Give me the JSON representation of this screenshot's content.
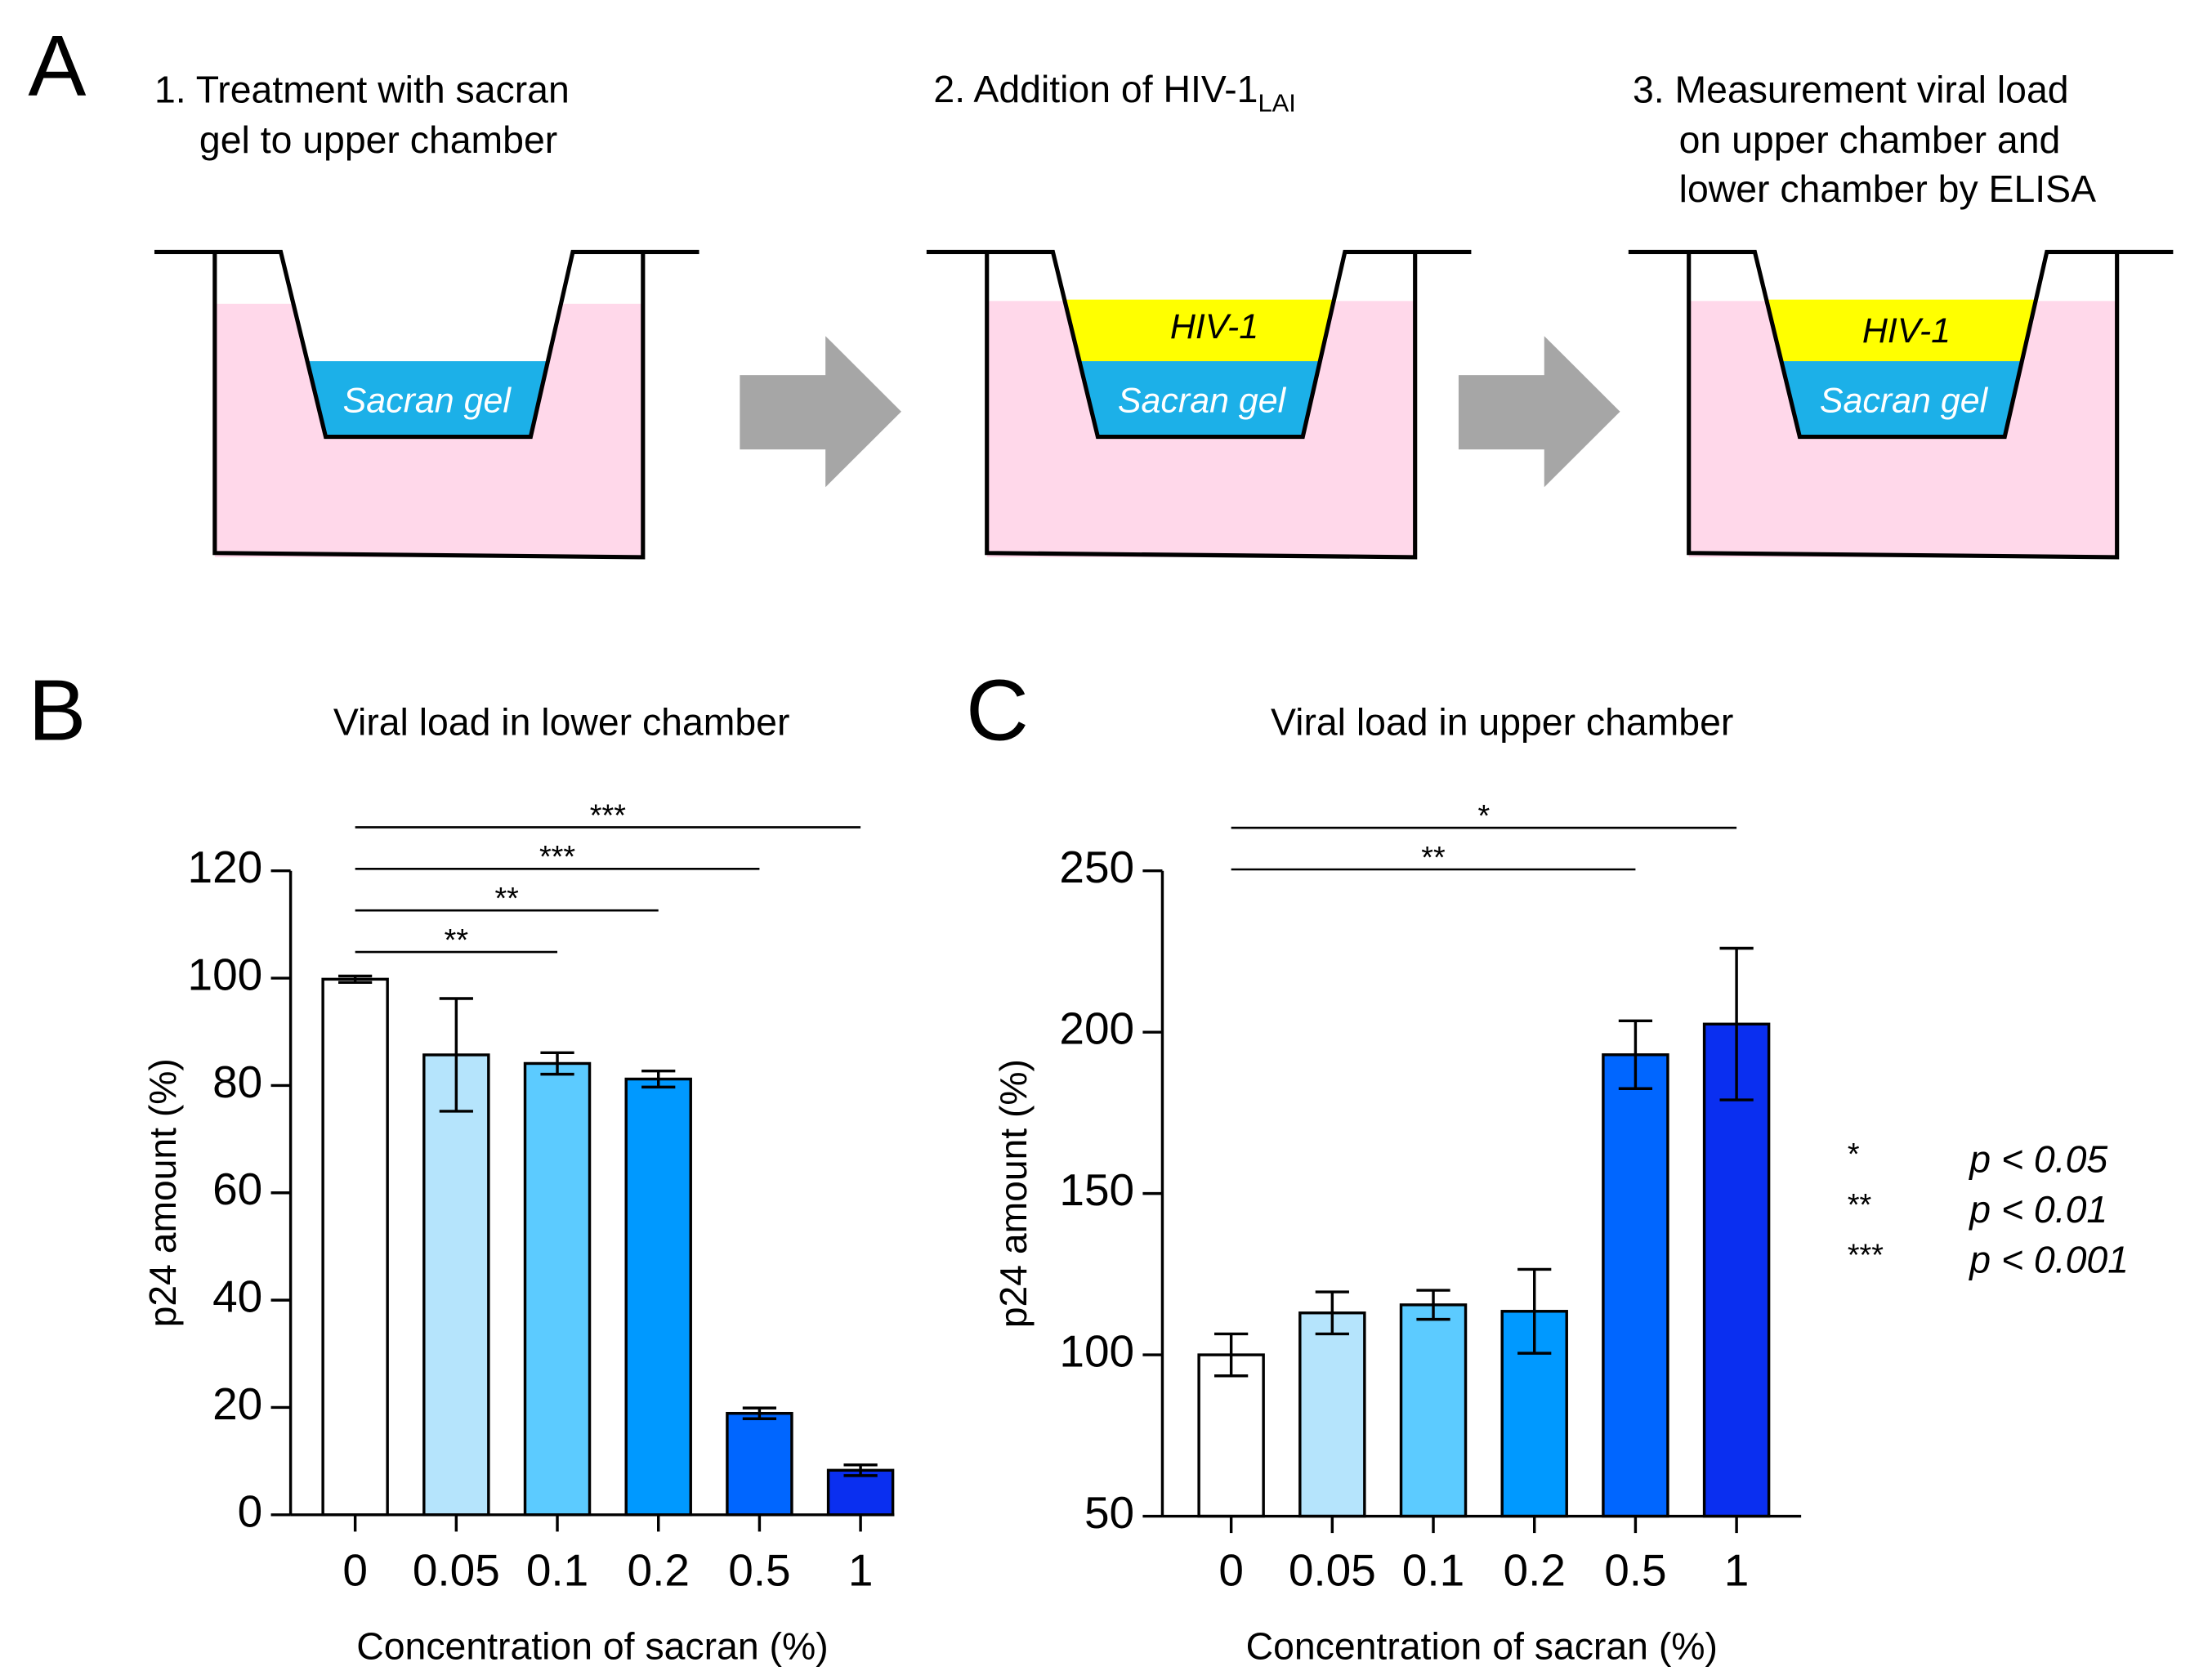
{
  "panel_a": {
    "label": "A",
    "steps": [
      {
        "lines": [
          "1. Treatment with sacran",
          "gel to upper chamber"
        ]
      },
      {
        "lines": [
          "2. Addition of HIV-1"
        ],
        "subscript": "LAI"
      },
      {
        "lines": [
          "3. Measurement viral load",
          "on upper chamber and",
          "lower chamber by ELISA"
        ]
      }
    ],
    "gel_label": "Sacran gel",
    "virus_label": "HIV-1"
  },
  "chart_data": [
    {
      "type": "bar",
      "label": "B",
      "title": "Viral load in lower chamber",
      "x_label": "Concentration of sacran (%)",
      "y_label": "p24 amount (%)",
      "categories": [
        "0",
        "0.05",
        "0.1",
        "0.2",
        "0.5",
        "1"
      ],
      "values": [
        99.8,
        85.7,
        84.1,
        81.2,
        18.9,
        8.3
      ],
      "errors": [
        0.6,
        10.5,
        2,
        1.5,
        1,
        1
      ],
      "colors": [
        "#ffffff",
        "#b5e4fc",
        "#5ccbff",
        "#0099ff",
        "#0066ff",
        "#0a2ff0"
      ],
      "ylim": [
        0,
        120
      ],
      "yticks": [
        0,
        20,
        40,
        60,
        80,
        100,
        120
      ],
      "significance": [
        {
          "from": "0",
          "to": "0.1",
          "label": "**"
        },
        {
          "from": "0",
          "to": "0.2",
          "label": "**"
        },
        {
          "from": "0",
          "to": "0.5",
          "label": "***"
        },
        {
          "from": "0",
          "to": "1",
          "label": "***"
        }
      ]
    },
    {
      "type": "bar",
      "label": "C",
      "title": "Viral load in upper chamber",
      "x_label": "Concentration of sacran (%)",
      "y_label": "p24 amount (%)",
      "categories": [
        "0",
        "0.05",
        "0.1",
        "0.2",
        "0.5",
        "1"
      ],
      "values": [
        100,
        113,
        115.5,
        113.5,
        193,
        202.5
      ],
      "errors": [
        6.5,
        6.5,
        4.5,
        13,
        10.5,
        23.5
      ],
      "colors": [
        "#ffffff",
        "#b5e4fc",
        "#5ccbff",
        "#0099ff",
        "#0066ff",
        "#0a2ff0"
      ],
      "ylim": [
        50,
        250
      ],
      "yticks": [
        50,
        100,
        150,
        200,
        250
      ],
      "significance": [
        {
          "from": "0",
          "to": "0.5",
          "label": "**"
        },
        {
          "from": "0",
          "to": "1",
          "label": "*"
        }
      ]
    }
  ],
  "p_legend": [
    {
      "stars": "*",
      "text": "p < 0.05"
    },
    {
      "stars": "**",
      "text": "p < 0.01"
    },
    {
      "stars": "***",
      "text": "p < 0.001"
    }
  ]
}
